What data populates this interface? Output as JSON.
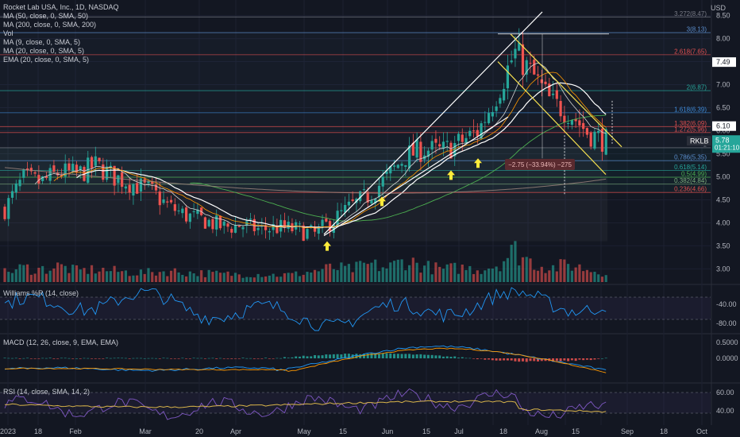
{
  "header": {
    "symbol_line": "Rocket Lab USA, Inc., 1D, NASDAQ",
    "currency": "USD"
  },
  "legend": [
    "MA (50, close, 0, SMA, 50)",
    "MA (200, close, 0, SMA, 200)",
    "Vol",
    "MA (9, close, 0, SMA, 5)",
    "MA (20, close, 0, SMA, 5)",
    "EMA (20, close, 0, SMA, 5)"
  ],
  "panes": {
    "williams": "Williams %R (14, close)",
    "macd": "MACD (12, 26, close, 9, EMA, EMA)",
    "rsi": "RSI (14, close, SMA, 14, 2)"
  },
  "last_price": {
    "ticker": "RKLB",
    "price": "5.78",
    "countdown": "01:21:10"
  },
  "colors": {
    "background": "#131722",
    "up": "#26a69a",
    "down": "#ef5350",
    "accent_label": "#26a69a"
  },
  "chart_data": [
    {
      "type": "candlestick",
      "title": "Rocket Lab USA, Inc., 1D, NASDAQ",
      "x_tick_labels": [
        "2023",
        "18",
        "Feb",
        "Mar",
        "20",
        "Apr",
        "May",
        "15",
        "Jun",
        "15",
        "Jul",
        "18",
        "Aug",
        "15",
        "Sep",
        "18",
        "Oct"
      ],
      "y_tick_labels": [
        "3.00",
        "3.50",
        "4.00",
        "4.50",
        "5.00",
        "5.50",
        "6.00",
        "6.50",
        "7.00",
        "7.50",
        "8.00",
        "8.50"
      ],
      "ylim": [
        2.8,
        8.7
      ],
      "x_dates": [
        "2023-01-03",
        "2023-01-10",
        "2023-01-17",
        "2023-01-24",
        "2023-01-31",
        "2023-02-07",
        "2023-02-14",
        "2023-02-21",
        "2023-02-28",
        "2023-03-07",
        "2023-03-14",
        "2023-03-21",
        "2023-03-28",
        "2023-04-04",
        "2023-04-11",
        "2023-04-18",
        "2023-04-25",
        "2023-05-02",
        "2023-05-09",
        "2023-05-16",
        "2023-05-23",
        "2023-05-30",
        "2023-06-06",
        "2023-06-13",
        "2023-06-20",
        "2023-06-27",
        "2023-07-04",
        "2023-07-11",
        "2023-07-18",
        "2023-07-25",
        "2023-08-01",
        "2023-08-08",
        "2023-08-15",
        "2023-08-22"
      ],
      "close": [
        4.3,
        4.95,
        4.88,
        5.1,
        5.05,
        5.25,
        5.0,
        4.85,
        4.7,
        4.35,
        4.15,
        4.05,
        3.9,
        3.95,
        3.85,
        3.9,
        3.85,
        3.75,
        4.05,
        4.35,
        4.6,
        5.0,
        5.45,
        5.6,
        5.55,
        5.75,
        6.0,
        6.8,
        7.7,
        7.2,
        6.6,
        6.4,
        5.95,
        5.78
      ],
      "volume_relative": [
        0.3,
        0.45,
        0.4,
        0.5,
        0.35,
        0.4,
        0.35,
        0.3,
        0.3,
        0.35,
        0.3,
        0.28,
        0.25,
        0.25,
        0.25,
        0.22,
        0.25,
        0.35,
        0.45,
        0.4,
        0.55,
        0.45,
        0.7,
        0.5,
        0.4,
        0.45,
        0.4,
        0.55,
        1.0,
        0.6,
        0.45,
        0.55,
        0.4,
        0.3
      ],
      "fibonacci_levels": [
        {
          "ratio": "0.236",
          "label": "0.236(4.66)",
          "price": 4.66
        },
        {
          "ratio": "0.382",
          "label": "0.382(4.84)",
          "price": 4.84
        },
        {
          "ratio": "0.5",
          "label": "0.5(4.99)",
          "price": 4.99
        },
        {
          "ratio": "0.618",
          "label": "0.618(5.14)",
          "price": 5.14
        },
        {
          "ratio": "0.786",
          "label": "0.786(5.35)",
          "price": 5.35
        },
        {
          "ratio": "1",
          "label": "1",
          "price": 5.63
        },
        {
          "ratio": "1.272",
          "label": "1.272(5.96)",
          "price": 5.96
        },
        {
          "ratio": "1.382",
          "label": "1.382(6.09)",
          "price": 6.09
        },
        {
          "ratio": "1.618",
          "label": "1.618(6.39)",
          "price": 6.39
        },
        {
          "ratio": "2",
          "label": "2(6.87)",
          "price": 6.87
        },
        {
          "ratio": "2.618",
          "label": "2.618(7.65)",
          "price": 7.65
        },
        {
          "ratio": "3",
          "label": "3(8.13)",
          "price": 8.13
        },
        {
          "ratio": "3.272",
          "label": "3.272(8.47)",
          "price": 8.47
        }
      ],
      "price_labels": [
        {
          "text": "7.49",
          "price": 7.49
        },
        {
          "text": "6.10",
          "price": 6.1
        }
      ],
      "measure_annotation": "−2.75 (−33.94%) −275"
    },
    {
      "type": "line",
      "title": "Williams %R (14, close)",
      "y_tick_labels": [
        "-40.00",
        "-80.00"
      ],
      "ylim": [
        -100,
        0
      ]
    },
    {
      "type": "line",
      "title": "MACD (12, 26, close, 9, EMA, EMA)",
      "y_tick_labels": [
        "0.5000",
        "0.0000"
      ],
      "ylim": [
        -0.15,
        0.65
      ]
    },
    {
      "type": "line",
      "title": "RSI (14, close, SMA, 14, 2)",
      "y_tick_labels": [
        "60.00",
        "40.00"
      ],
      "ylim": [
        25,
        85
      ]
    }
  ]
}
